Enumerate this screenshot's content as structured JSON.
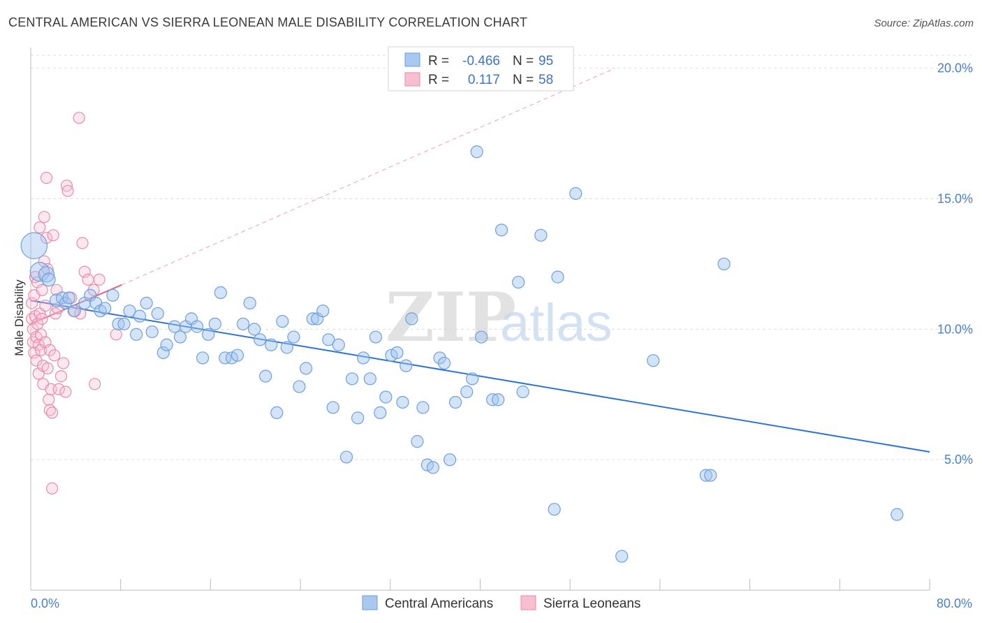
{
  "header": {
    "title": "CENTRAL AMERICAN VS SIERRA LEONEAN MALE DISABILITY CORRELATION CHART",
    "source": "Source: ZipAtlas.com"
  },
  "watermark": {
    "zip": "ZIP",
    "atlas": "atlas"
  },
  "legend_top": {
    "rows": [
      {
        "r_label": "R =",
        "r_value": "-0.466",
        "n_label": "N =",
        "n_value": "95",
        "color": "#a9c8f0",
        "stroke": "#6a9bd8"
      },
      {
        "r_label": "R =",
        "r_value": "0.117",
        "n_label": "N =",
        "n_value": "58",
        "color": "#f7bfd0",
        "stroke": "#e38aa8"
      }
    ]
  },
  "legend_bottom": {
    "items": [
      {
        "label": "Central Americans",
        "color": "#a9c8f0",
        "stroke": "#6a9bd8"
      },
      {
        "label": "Sierra Leoneans",
        "color": "#f7bfd0",
        "stroke": "#e38aa8"
      }
    ]
  },
  "colors": {
    "blue_fill": "rgba(160,196,240,0.45)",
    "blue_stroke": "#6f9fdc",
    "blue_line": "#2f74d0",
    "pink_fill": "rgba(248,190,208,0.35)",
    "pink_stroke": "#e68cab",
    "pink_line": "#e0628e",
    "grid": "#dddddd",
    "tick_text": "#4a7fc8"
  },
  "chart_data": {
    "type": "scatter",
    "title": "CENTRAL AMERICAN VS SIERRA LEONEAN MALE DISABILITY CORRELATION CHART",
    "xlabel": "",
    "ylabel": "Male Disability",
    "xlim": [
      0,
      80
    ],
    "ylim": [
      0,
      20.5
    ],
    "x_tick_labels": [
      "0.0%",
      "80.0%"
    ],
    "y_ticks": [
      5,
      10,
      15,
      20
    ],
    "y_tick_labels": [
      "5.0%",
      "10.0%",
      "15.0%",
      "20.0%"
    ],
    "grid": true,
    "legend_position": "top-center",
    "series": [
      {
        "name": "Central Americans",
        "r": -0.466,
        "n": 95,
        "trend": {
          "x": [
            0,
            80
          ],
          "y": [
            11.1,
            5.3
          ],
          "style": "solid"
        },
        "points": [
          [
            0.3,
            13.2,
            2.2
          ],
          [
            0.8,
            12.2,
            1.6
          ],
          [
            1.4,
            12.1,
            1.3
          ],
          [
            1.6,
            11.9,
            1.1
          ],
          [
            2.3,
            11.1,
            1.1
          ],
          [
            2.8,
            11.2,
            1.0
          ],
          [
            3.1,
            11.0,
            1.0
          ],
          [
            3.4,
            11.2,
            1.0
          ],
          [
            3.9,
            10.7,
            1.0
          ],
          [
            4.8,
            11.0,
            1.0
          ],
          [
            5.3,
            11.3,
            1.0
          ],
          [
            5.8,
            11.0,
            1.0
          ],
          [
            6.2,
            10.7,
            1.0
          ],
          [
            6.6,
            10.8,
            1.0
          ],
          [
            7.3,
            11.3,
            1.0
          ],
          [
            7.8,
            10.2,
            1.0
          ],
          [
            8.3,
            10.2,
            1.0
          ],
          [
            8.8,
            10.7,
            1.0
          ],
          [
            9.4,
            9.8,
            1.0
          ],
          [
            9.7,
            10.5,
            1.0
          ],
          [
            10.3,
            11.0,
            1.0
          ],
          [
            10.8,
            9.9,
            1.0
          ],
          [
            11.3,
            10.6,
            1.0
          ],
          [
            11.8,
            9.1,
            1.0
          ],
          [
            12.1,
            9.4,
            1.0
          ],
          [
            12.8,
            10.1,
            1.0
          ],
          [
            13.3,
            9.7,
            1.0
          ],
          [
            13.8,
            10.1,
            1.0
          ],
          [
            14.3,
            10.4,
            1.0
          ],
          [
            14.8,
            10.1,
            1.0
          ],
          [
            15.3,
            8.9,
            1.0
          ],
          [
            15.8,
            9.8,
            1.0
          ],
          [
            16.4,
            10.2,
            1.0
          ],
          [
            16.9,
            11.4,
            1.0
          ],
          [
            17.3,
            8.9,
            1.0
          ],
          [
            17.9,
            8.9,
            1.0
          ],
          [
            18.4,
            9.0,
            1.0
          ],
          [
            18.9,
            10.2,
            1.0
          ],
          [
            19.5,
            11.0,
            1.0
          ],
          [
            19.9,
            10.0,
            1.0
          ],
          [
            20.4,
            9.6,
            1.0
          ],
          [
            20.9,
            8.2,
            1.0
          ],
          [
            21.4,
            9.4,
            1.0
          ],
          [
            21.9,
            6.8,
            1.0
          ],
          [
            22.4,
            10.3,
            1.0
          ],
          [
            22.8,
            9.3,
            1.0
          ],
          [
            23.4,
            9.7,
            1.0
          ],
          [
            23.9,
            7.8,
            1.0
          ],
          [
            24.5,
            8.5,
            1.0
          ],
          [
            25.1,
            10.4,
            1.0
          ],
          [
            25.5,
            10.4,
            1.0
          ],
          [
            26.0,
            10.7,
            1.0
          ],
          [
            26.5,
            9.6,
            1.0
          ],
          [
            26.9,
            7.0,
            1.0
          ],
          [
            27.4,
            9.4,
            1.0
          ],
          [
            28.1,
            5.1,
            1.0
          ],
          [
            28.6,
            8.1,
            1.0
          ],
          [
            29.1,
            6.6,
            1.0
          ],
          [
            29.6,
            8.9,
            1.0
          ],
          [
            30.2,
            8.1,
            1.0
          ],
          [
            30.7,
            9.7,
            1.0
          ],
          [
            31.1,
            6.8,
            1.0
          ],
          [
            31.6,
            7.4,
            1.0
          ],
          [
            32.1,
            9.0,
            1.0
          ],
          [
            32.6,
            9.1,
            1.0
          ],
          [
            33.1,
            7.2,
            1.0
          ],
          [
            33.4,
            8.6,
            1.0
          ],
          [
            33.9,
            10.4,
            1.0
          ],
          [
            34.4,
            5.7,
            1.0
          ],
          [
            34.9,
            7.0,
            1.0
          ],
          [
            35.3,
            4.8,
            1.0
          ],
          [
            35.8,
            4.7,
            1.0
          ],
          [
            36.4,
            8.9,
            1.0
          ],
          [
            36.8,
            8.7,
            1.0
          ],
          [
            37.3,
            5.0,
            1.0
          ],
          [
            37.8,
            7.2,
            1.0
          ],
          [
            38.8,
            7.6,
            1.0
          ],
          [
            39.3,
            8.1,
            1.0
          ],
          [
            39.7,
            16.8,
            1.0
          ],
          [
            40.1,
            9.7,
            1.0
          ],
          [
            41.1,
            7.3,
            1.0
          ],
          [
            41.6,
            7.3,
            1.0
          ],
          [
            41.9,
            13.8,
            1.0
          ],
          [
            43.4,
            11.8,
            1.0
          ],
          [
            43.8,
            7.6,
            1.0
          ],
          [
            45.4,
            13.6,
            1.0
          ],
          [
            46.6,
            3.1,
            1.0
          ],
          [
            46.9,
            12.0,
            1.0
          ],
          [
            48.5,
            15.2,
            1.0
          ],
          [
            52.6,
            1.3,
            1.0
          ],
          [
            55.4,
            8.8,
            1.0
          ],
          [
            60.1,
            4.4,
            1.0
          ],
          [
            60.5,
            4.4,
            1.0
          ],
          [
            61.7,
            12.5,
            1.0
          ],
          [
            77.1,
            2.9,
            1.0
          ]
        ]
      },
      {
        "name": "Sierra Leoneans",
        "r": 0.117,
        "n": 58,
        "trend": {
          "x": [
            0,
            8.1
          ],
          "y": [
            10.2,
            11.7
          ],
          "style": "solid",
          "extended_x": [
            8.1,
            52
          ],
          "extended_y": [
            11.7,
            20.0
          ],
          "extended_style": "dashed"
        },
        "points": [
          [
            0.1,
            11.0
          ],
          [
            0.1,
            10.4
          ],
          [
            0.2,
            10.0
          ],
          [
            0.2,
            9.5
          ],
          [
            0.3,
            11.3
          ],
          [
            0.3,
            9.1
          ],
          [
            0.4,
            12.0
          ],
          [
            0.4,
            10.5
          ],
          [
            0.5,
            9.7
          ],
          [
            0.5,
            8.8
          ],
          [
            0.6,
            11.8
          ],
          [
            0.6,
            10.2
          ],
          [
            0.7,
            9.4
          ],
          [
            0.7,
            8.3
          ],
          [
            0.8,
            13.9
          ],
          [
            0.8,
            10.6
          ],
          [
            0.9,
            9.8
          ],
          [
            0.9,
            9.2
          ],
          [
            1.0,
            11.5
          ],
          [
            1.0,
            10.4
          ],
          [
            1.1,
            8.6
          ],
          [
            1.1,
            7.9
          ],
          [
            1.2,
            14.3
          ],
          [
            1.2,
            12.6
          ],
          [
            1.3,
            10.9
          ],
          [
            1.3,
            9.5
          ],
          [
            1.4,
            15.8
          ],
          [
            1.4,
            13.5
          ],
          [
            1.5,
            12.3
          ],
          [
            1.5,
            8.5
          ],
          [
            1.6,
            7.3
          ],
          [
            1.7,
            9.2
          ],
          [
            1.7,
            6.9
          ],
          [
            1.8,
            7.7
          ],
          [
            1.9,
            6.8
          ],
          [
            1.9,
            3.9
          ],
          [
            2.0,
            13.6
          ],
          [
            2.1,
            9.0
          ],
          [
            2.2,
            10.6
          ],
          [
            2.3,
            11.5
          ],
          [
            2.4,
            10.8
          ],
          [
            2.5,
            7.7
          ],
          [
            2.7,
            8.2
          ],
          [
            2.9,
            8.7
          ],
          [
            3.1,
            7.6
          ],
          [
            3.2,
            15.5
          ],
          [
            3.3,
            15.3
          ],
          [
            3.6,
            11.2
          ],
          [
            3.8,
            10.7
          ],
          [
            4.3,
            18.1
          ],
          [
            4.4,
            10.6
          ],
          [
            4.6,
            13.3
          ],
          [
            4.8,
            12.2
          ],
          [
            5.1,
            11.9
          ],
          [
            5.6,
            11.5
          ],
          [
            5.7,
            7.9
          ],
          [
            6.1,
            11.9
          ],
          [
            7.6,
            9.8
          ]
        ]
      }
    ]
  }
}
